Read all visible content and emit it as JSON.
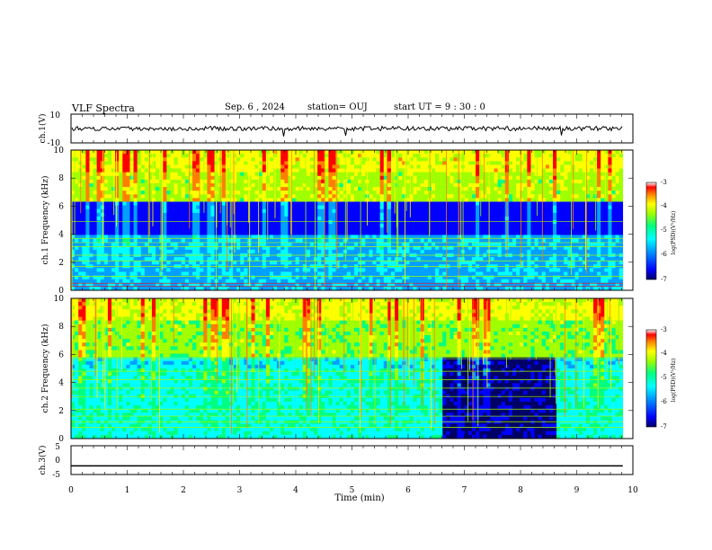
{
  "header": {
    "title": "VLF Spectra",
    "date": "Sep. 6 , 2024",
    "station": "station= OUJ",
    "start": "start UT = 9 : 30 : 0"
  },
  "chart_data": [
    {
      "type": "line",
      "ylabel": "ch.1(V)",
      "ylim": [
        -10,
        10
      ],
      "ytick_labels": [
        "10",
        "-10"
      ],
      "x": [
        0,
        10
      ],
      "description_values": "noisy trace around 0 V",
      "values_mean": 0
    },
    {
      "type": "heatmap",
      "ylabel": "ch.1 Frequency (kHz)",
      "ylim": [
        0,
        10
      ],
      "ytick_labels": [
        "0",
        "2",
        "4",
        "6",
        "8",
        "10"
      ],
      "xlim": [
        0,
        10
      ],
      "colorbar": {
        "label": "log(PSD)(V²/Hz)",
        "range": [
          -7,
          -3
        ],
        "tick_labels": [
          "-3",
          "-4",
          "-5",
          "-6",
          "-7"
        ]
      }
    },
    {
      "type": "heatmap",
      "ylabel": "ch.2 Frequency (kHz)",
      "ylim": [
        0,
        10
      ],
      "ytick_labels": [
        "0",
        "2",
        "4",
        "6",
        "8",
        "10"
      ],
      "xlim": [
        0,
        10
      ],
      "colorbar": {
        "label": "log(PSD)(V²/Hz)",
        "range": [
          -7,
          -3
        ],
        "tick_labels": [
          "-3",
          "-4",
          "-5",
          "-6",
          "-7"
        ]
      }
    },
    {
      "type": "line",
      "ylabel": "ch.3(V)",
      "ylim": [
        -5,
        5
      ],
      "ytick_labels": [
        "5",
        "0",
        "-5"
      ],
      "x": [
        0,
        9.82
      ],
      "values": [
        -2,
        -2
      ]
    }
  ],
  "xaxis": {
    "label": "Time (min)",
    "range": [
      0,
      10
    ],
    "tick_labels": [
      "0",
      "1",
      "2",
      "3",
      "4",
      "5",
      "6",
      "7",
      "8",
      "9",
      "10"
    ]
  },
  "colors": {
    "scale": [
      "#000066",
      "#0000ff",
      "#00a0ff",
      "#00ffff",
      "#00ff80",
      "#a0ff00",
      "#ffff00",
      "#ff8000",
      "#ff0000",
      "#ffffff"
    ]
  }
}
